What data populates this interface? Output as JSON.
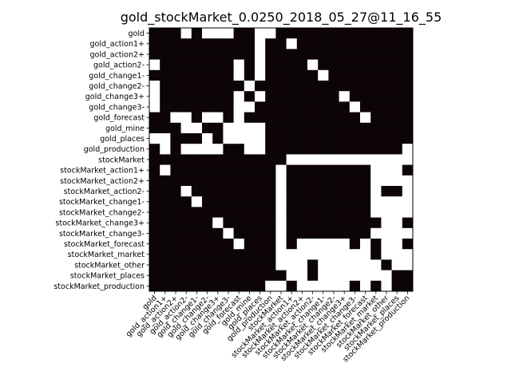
{
  "chart_data": {
    "type": "heatmap",
    "title": "gold_stockMarket_0.0250_2018_05_27@11_16_55",
    "xlabel": "",
    "ylabel": "",
    "labels": [
      "gold",
      "gold_action1+",
      "gold_action2+",
      "gold_action2-",
      "gold_change1-",
      "gold_change2-",
      "gold_change3+",
      "gold_change3-",
      "gold_forecast",
      "gold_mine",
      "gold_places",
      "gold_production",
      "stockMarket",
      "stockMarket_action1+",
      "stockMarket_action2+",
      "stockMarket_action2-",
      "stockMarket_change1-",
      "stockMarket_change2-",
      "stockMarket_change3+",
      "stockMarket_change3-",
      "stockMarket_forecast",
      "stockMarket_market",
      "stockMarket_other",
      "stockMarket_places",
      "stockMarket_production"
    ],
    "colors": {
      "zero": "#0d0505",
      "one": "#ffffff"
    },
    "grid": false,
    "matrix": [
      [
        0,
        0,
        0,
        1,
        0,
        1,
        1,
        1,
        0,
        0,
        1,
        1,
        0,
        0,
        0,
        0,
        0,
        0,
        0,
        0,
        0,
        0,
        0,
        0,
        0
      ],
      [
        0,
        0,
        0,
        0,
        0,
        0,
        0,
        0,
        0,
        0,
        1,
        0,
        0,
        1,
        0,
        0,
        0,
        0,
        0,
        0,
        0,
        0,
        0,
        0,
        0
      ],
      [
        0,
        0,
        0,
        0,
        0,
        0,
        0,
        0,
        0,
        0,
        1,
        0,
        0,
        0,
        0,
        0,
        0,
        0,
        0,
        0,
        0,
        0,
        0,
        0,
        0
      ],
      [
        1,
        0,
        0,
        0,
        0,
        0,
        0,
        0,
        1,
        0,
        1,
        0,
        0,
        0,
        0,
        1,
        0,
        0,
        0,
        0,
        0,
        0,
        0,
        0,
        0
      ],
      [
        0,
        0,
        0,
        0,
        0,
        0,
        0,
        0,
        1,
        0,
        1,
        0,
        0,
        0,
        0,
        0,
        1,
        0,
        0,
        0,
        0,
        0,
        0,
        0,
        0
      ],
      [
        1,
        0,
        0,
        0,
        0,
        0,
        0,
        0,
        0,
        1,
        0,
        0,
        0,
        0,
        0,
        0,
        0,
        0,
        0,
        0,
        0,
        0,
        0,
        0,
        0
      ],
      [
        1,
        0,
        0,
        0,
        0,
        0,
        0,
        0,
        1,
        0,
        1,
        0,
        0,
        0,
        0,
        0,
        0,
        0,
        1,
        0,
        0,
        0,
        0,
        0,
        0
      ],
      [
        1,
        0,
        0,
        0,
        0,
        0,
        0,
        0,
        1,
        1,
        0,
        0,
        0,
        0,
        0,
        0,
        0,
        0,
        0,
        1,
        0,
        0,
        0,
        0,
        0
      ],
      [
        0,
        0,
        1,
        1,
        0,
        1,
        1,
        0,
        1,
        0,
        0,
        0,
        0,
        0,
        0,
        0,
        0,
        0,
        0,
        0,
        1,
        0,
        0,
        0,
        0
      ],
      [
        0,
        0,
        0,
        1,
        1,
        0,
        0,
        1,
        1,
        1,
        1,
        0,
        0,
        0,
        0,
        0,
        0,
        0,
        0,
        0,
        0,
        0,
        0,
        0,
        0
      ],
      [
        1,
        1,
        0,
        0,
        0,
        1,
        0,
        1,
        1,
        1,
        1,
        0,
        0,
        0,
        0,
        0,
        0,
        0,
        0,
        0,
        0,
        0,
        0,
        0,
        0
      ],
      [
        0,
        1,
        0,
        1,
        1,
        1,
        1,
        0,
        0,
        1,
        1,
        0,
        0,
        0,
        0,
        0,
        0,
        0,
        0,
        0,
        0,
        0,
        0,
        0,
        1
      ],
      [
        0,
        0,
        0,
        0,
        0,
        0,
        0,
        0,
        0,
        0,
        0,
        0,
        0,
        1,
        1,
        1,
        1,
        1,
        1,
        1,
        1,
        1,
        1,
        1,
        1
      ],
      [
        0,
        1,
        0,
        0,
        0,
        0,
        0,
        0,
        0,
        0,
        0,
        0,
        1,
        0,
        0,
        0,
        0,
        0,
        0,
        0,
        0,
        1,
        1,
        1,
        0
      ],
      [
        0,
        0,
        0,
        0,
        0,
        0,
        0,
        0,
        0,
        0,
        0,
        0,
        1,
        0,
        0,
        0,
        0,
        0,
        0,
        0,
        0,
        1,
        1,
        1,
        1
      ],
      [
        0,
        0,
        0,
        1,
        0,
        0,
        0,
        0,
        0,
        0,
        0,
        0,
        1,
        0,
        0,
        0,
        0,
        0,
        0,
        0,
        0,
        1,
        0,
        0,
        1
      ],
      [
        0,
        0,
        0,
        0,
        1,
        0,
        0,
        0,
        0,
        0,
        0,
        0,
        1,
        0,
        0,
        0,
        0,
        0,
        0,
        0,
        0,
        1,
        1,
        1,
        1
      ],
      [
        0,
        0,
        0,
        0,
        0,
        0,
        0,
        0,
        0,
        0,
        0,
        0,
        1,
        0,
        0,
        0,
        0,
        0,
        0,
        0,
        0,
        1,
        1,
        1,
        1
      ],
      [
        0,
        0,
        0,
        0,
        0,
        0,
        1,
        0,
        0,
        0,
        0,
        0,
        1,
        0,
        0,
        0,
        0,
        0,
        0,
        0,
        0,
        0,
        1,
        1,
        0
      ],
      [
        0,
        0,
        0,
        0,
        0,
        0,
        0,
        1,
        0,
        0,
        0,
        0,
        1,
        0,
        0,
        0,
        0,
        0,
        0,
        0,
        0,
        1,
        1,
        1,
        1
      ],
      [
        0,
        0,
        0,
        0,
        0,
        0,
        0,
        0,
        1,
        0,
        0,
        0,
        1,
        0,
        1,
        1,
        1,
        1,
        1,
        0,
        1,
        0,
        1,
        1,
        0
      ],
      [
        0,
        0,
        0,
        0,
        0,
        0,
        0,
        0,
        0,
        0,
        0,
        0,
        1,
        1,
        1,
        1,
        1,
        1,
        1,
        1,
        1,
        0,
        1,
        1,
        1
      ],
      [
        0,
        0,
        0,
        0,
        0,
        0,
        0,
        0,
        0,
        0,
        0,
        0,
        1,
        1,
        1,
        0,
        1,
        1,
        1,
        1,
        1,
        1,
        0,
        1,
        1
      ],
      [
        0,
        0,
        0,
        0,
        0,
        0,
        0,
        0,
        0,
        0,
        0,
        0,
        0,
        1,
        1,
        0,
        1,
        1,
        1,
        1,
        1,
        1,
        1,
        0,
        0
      ],
      [
        0,
        0,
        0,
        0,
        0,
        0,
        0,
        0,
        0,
        0,
        0,
        1,
        1,
        0,
        1,
        1,
        1,
        1,
        1,
        0,
        1,
        0,
        1,
        0,
        0
      ]
    ]
  }
}
